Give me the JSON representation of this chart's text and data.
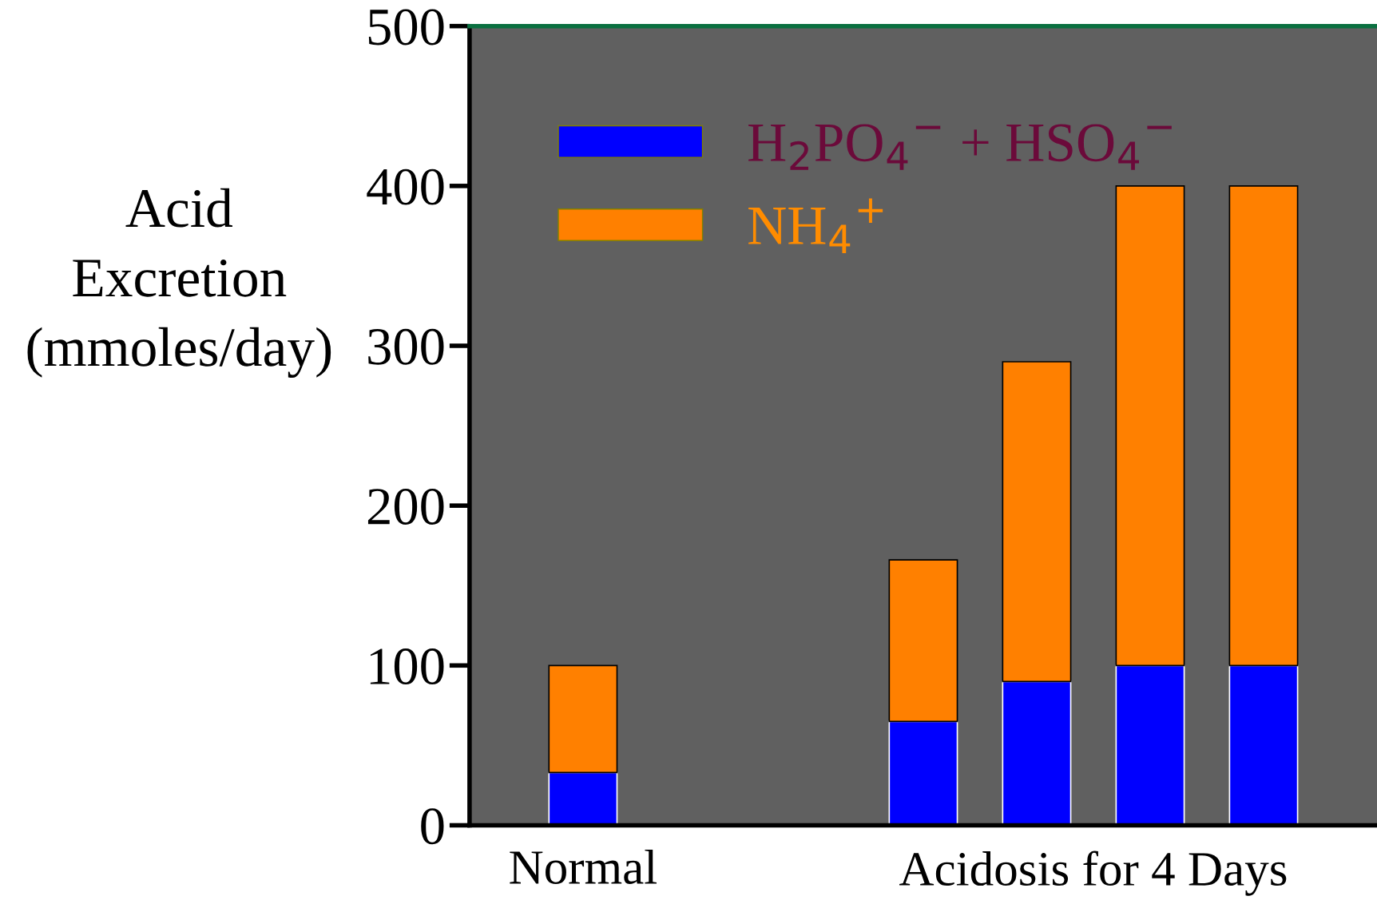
{
  "chart_data": {
    "type": "bar",
    "stacked": true,
    "categories": [
      "Normal",
      null,
      null,
      null,
      null,
      null,
      null
    ],
    "xlabel": "Acidosis for 4 Days",
    "ylabel": "Acid\nExcretion\n(mmoles/day)",
    "series": [
      {
        "name": "H$_{2}$PO$_{4}$$^{−}$ + HSO$_{4}$$^{−}$",
        "color": "#0000ff",
        "values": [
          33,
          null,
          null,
          65,
          90,
          100,
          100
        ]
      },
      {
        "name": "NH$_{4}$$^{+}$",
        "color": "#ff8000",
        "values": [
          67,
          null,
          null,
          101,
          200,
          300,
          300
        ]
      }
    ],
    "ylim": [
      0,
      500
    ],
    "yticks": [
      0,
      100,
      200,
      300,
      400,
      500
    ],
    "grid": false,
    "legend": "top left"
  }
}
